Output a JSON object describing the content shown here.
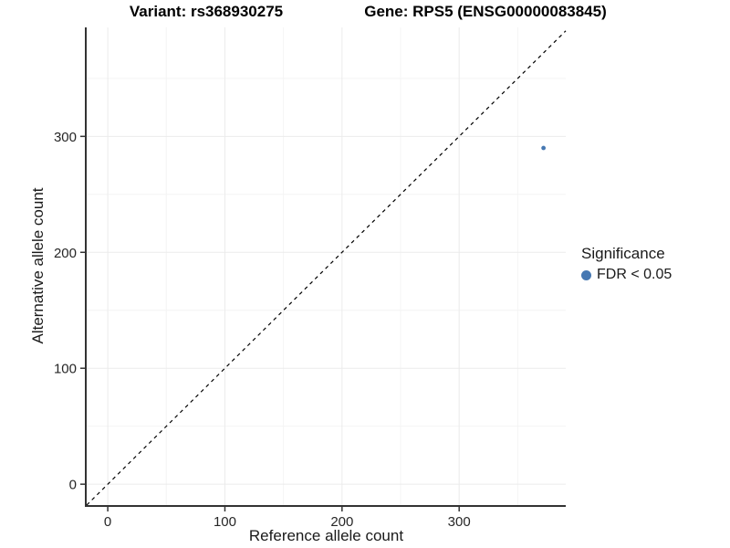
{
  "titles": {
    "variant": "Variant: rs368930275",
    "gene": "Gene: RPS5 (ENSG00000083845)"
  },
  "axes": {
    "x_label": "Reference allele count",
    "y_label": "Alternative allele count"
  },
  "legend": {
    "title": "Significance",
    "items": [
      {
        "label": "FDR < 0.05",
        "marker": "circle",
        "color": "#4678b2"
      }
    ]
  },
  "colors": {
    "background": "#ffffff",
    "axis_line": "#333333",
    "tick_label": "#262626",
    "title_text": "#000000",
    "point": "#4678b2",
    "identity_line": "#000000"
  },
  "chart_data": {
    "type": "scatter",
    "title_left": "Variant: rs368930275",
    "title_right": "Gene: RPS5 (ENSG00000083845)",
    "xlabel": "Reference allele count",
    "ylabel": "Alternative allele count",
    "xlim": [
      -18,
      391
    ],
    "ylim": [
      -18,
      394
    ],
    "x_ticks": [
      0,
      100,
      200,
      300
    ],
    "y_ticks": [
      0,
      100,
      200,
      300
    ],
    "x_minor_ticks": [
      50,
      150,
      250,
      350
    ],
    "y_minor_ticks": [
      50,
      150,
      250,
      350
    ],
    "grid": {
      "major_color": "#ebebeb",
      "minor_color": "#f4f4f4"
    },
    "reference_line": {
      "type": "identity",
      "equation": "y = x",
      "style": "dashed",
      "color": "#000000"
    },
    "series": [
      {
        "name": "FDR < 0.05",
        "color": "#4678b2",
        "points": [
          {
            "x": 372,
            "y": 290
          }
        ]
      }
    ],
    "point_radius": 2.4,
    "legend_position": "right"
  }
}
